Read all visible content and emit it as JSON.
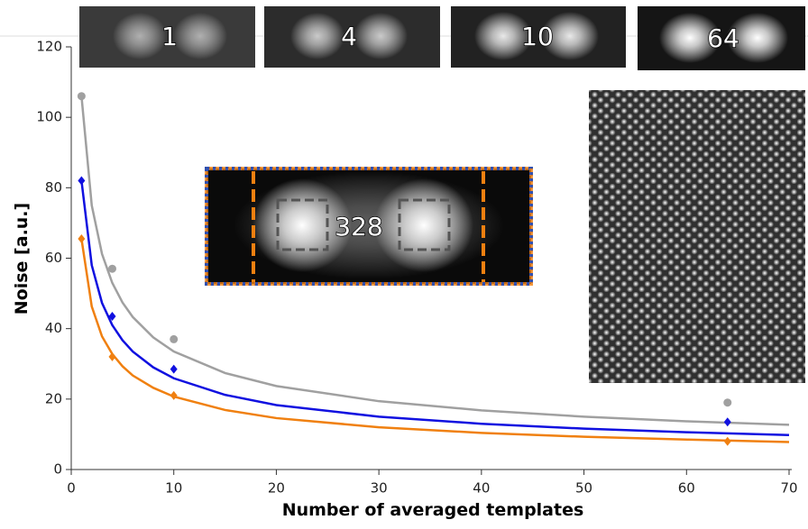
{
  "chart_data": {
    "type": "scatter",
    "xlabel": "Number of averaged templates",
    "ylabel": "Noise [a.u.]",
    "xlim": [
      0,
      70
    ],
    "xticks": [
      0,
      10,
      20,
      30,
      40,
      50,
      60,
      70
    ],
    "ylim": [
      0,
      120
    ],
    "yticks": [
      0,
      20,
      40,
      60,
      80,
      100,
      120
    ],
    "inset_labels": [
      "1",
      "4",
      "10",
      "64",
      "328"
    ],
    "series": [
      {
        "color": "#a0a0a0",
        "marker": "circle",
        "x": [
          1,
          4,
          10,
          64
        ],
        "values": [
          106,
          57,
          37,
          19
        ]
      },
      {
        "color": "#1010e0",
        "marker": "diamond",
        "x": [
          1,
          4,
          10,
          64
        ],
        "values": [
          82,
          43.5,
          28.5,
          13.5
        ]
      },
      {
        "color": "#f08010",
        "marker": "diamond",
        "x": [
          1,
          4,
          10,
          64
        ],
        "values": [
          65.5,
          32,
          21,
          8
        ]
      }
    ],
    "fit_x": [
      1,
      2,
      3,
      4,
      5,
      6,
      8,
      10,
      15,
      20,
      30,
      40,
      50,
      60,
      70
    ],
    "fits": [
      {
        "color": "#a0a0a0",
        "values": [
          106,
          75,
          61.2,
          53,
          47.4,
          43.3,
          37.5,
          33.5,
          27.4,
          23.7,
          19.4,
          16.8,
          15,
          13.7,
          12.7
        ]
      },
      {
        "color": "#1010e0",
        "values": [
          82,
          58,
          47.3,
          41,
          36.7,
          33.5,
          29,
          25.9,
          21.2,
          18.3,
          15,
          13,
          11.6,
          10.6,
          9.8
        ]
      },
      {
        "color": "#f08010",
        "values": [
          65.5,
          46.3,
          37.8,
          32.8,
          29.3,
          26.7,
          23.2,
          20.7,
          16.9,
          14.6,
          12,
          10.4,
          9.3,
          8.5,
          7.8
        ]
      }
    ]
  }
}
